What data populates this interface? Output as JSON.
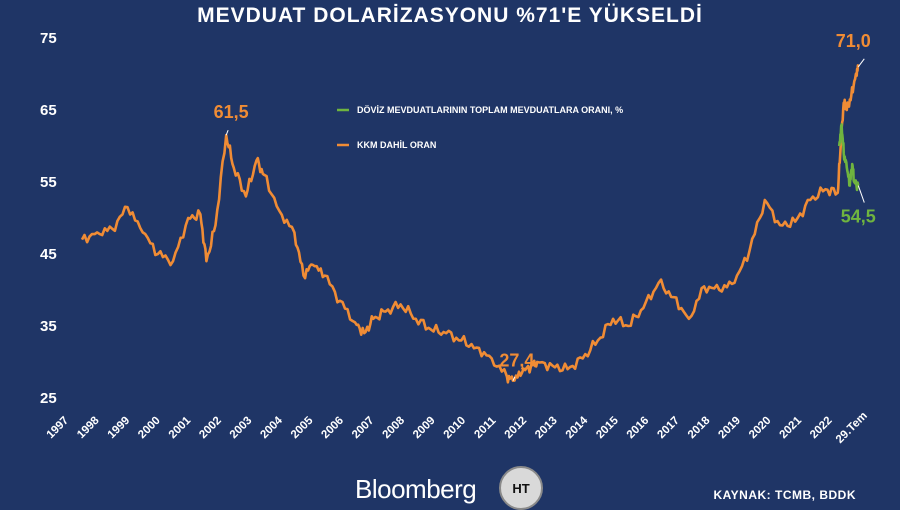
{
  "header": {
    "title": "MEVDUAT DOLARİZASYONU %71'E YÜKSELDİ"
  },
  "footer": {
    "brand": "Bloomberg",
    "logo_text": "HT",
    "source": "KAYNAK: TCMB, BDDK"
  },
  "colors": {
    "background": "#1f3566",
    "kkm_series": "#f08c35",
    "fx_series": "#6fb43f",
    "text": "#ffffff"
  },
  "chart_data": {
    "type": "line",
    "title": "MEVDUAT DOLARİZASYONU %71'E YÜKSELDİ",
    "ylim": [
      25,
      75
    ],
    "yticks": [
      "25",
      "35",
      "45",
      "55",
      "65",
      "75"
    ],
    "xticks": [
      "1997",
      "1998",
      "1999",
      "2000",
      "2001",
      "2002",
      "2003",
      "2004",
      "2005",
      "2006",
      "2007",
      "2008",
      "2009",
      "2010",
      "2011",
      "2012",
      "2013",
      "2014",
      "2015",
      "2016",
      "2017",
      "2018",
      "2019",
      "2020",
      "2021",
      "2022",
      "29.Tem"
    ],
    "legend_placement": "center-right",
    "grid": false,
    "series": [
      {
        "name": "KKM DAHİL ORAN",
        "color": "#f08c35",
        "x": [
          1997.0,
          1997.5,
          1998.0,
          1998.5,
          1999.0,
          1999.5,
          2000.0,
          2000.5,
          2000.9,
          2001.1,
          2001.4,
          2001.75,
          2002.0,
          2002.4,
          2002.75,
          2003.0,
          2003.5,
          2004.0,
          2004.3,
          2004.6,
          2005.0,
          2005.5,
          2006.0,
          2006.3,
          2006.6,
          2007.0,
          2007.5,
          2008.0,
          2008.5,
          2009.0,
          2009.5,
          2010.0,
          2010.5,
          2011.0,
          2011.2,
          2011.5,
          2011.8,
          2012.0,
          2012.5,
          2013.0,
          2013.5,
          2014.0,
          2014.5,
          2015.0,
          2015.5,
          2016.0,
          2016.5,
          2017.0,
          2017.5,
          2018.0,
          2018.5,
          2019.0,
          2019.5,
          2020.0,
          2020.5,
          2021.0,
          2021.5,
          2021.9,
          2022.0,
          2022.1,
          2022.2,
          2022.35,
          2022.5,
          2022.58
        ],
        "values": [
          47,
          48,
          48.5,
          51.5,
          48,
          45,
          44,
          50,
          50.5,
          44,
          49,
          61.5,
          57,
          53,
          58,
          56,
          51,
          48,
          42,
          43.5,
          42,
          38.5,
          35.5,
          34,
          36,
          37,
          38,
          36,
          34.5,
          34,
          33,
          32,
          30.5,
          28,
          27.4,
          28.5,
          29.5,
          30,
          29.5,
          29,
          30.5,
          33,
          36,
          35,
          37.5,
          41,
          39,
          36,
          40.5,
          40,
          41,
          45.5,
          52.5,
          49,
          49.5,
          52.5,
          54,
          53.5,
          60,
          66,
          65,
          67,
          70,
          71
        ]
      },
      {
        "name": "DÖVİZ MEVDUATLARININ TOPLAM MEVDUATLARA ORANI, %",
        "color": "#6fb43f",
        "x": [
          2021.95,
          2022.03,
          2022.1,
          2022.2,
          2022.3,
          2022.38,
          2022.45,
          2022.58
        ],
        "values": [
          60,
          63,
          59,
          57,
          54.5,
          57.5,
          55,
          54.5
        ]
      }
    ],
    "annotations": [
      {
        "text": "61,5",
        "x": 2001.75,
        "y": 61.5,
        "color": "#f08c35"
      },
      {
        "text": "27,4",
        "x": 2011.2,
        "y": 27.4,
        "color": "#f08c35"
      },
      {
        "text": "71,0",
        "x": 2022.58,
        "y": 71,
        "color": "#f08c35"
      },
      {
        "text": "54,5",
        "x": 2022.58,
        "y": 54.5,
        "color": "#6fb43f"
      }
    ]
  }
}
